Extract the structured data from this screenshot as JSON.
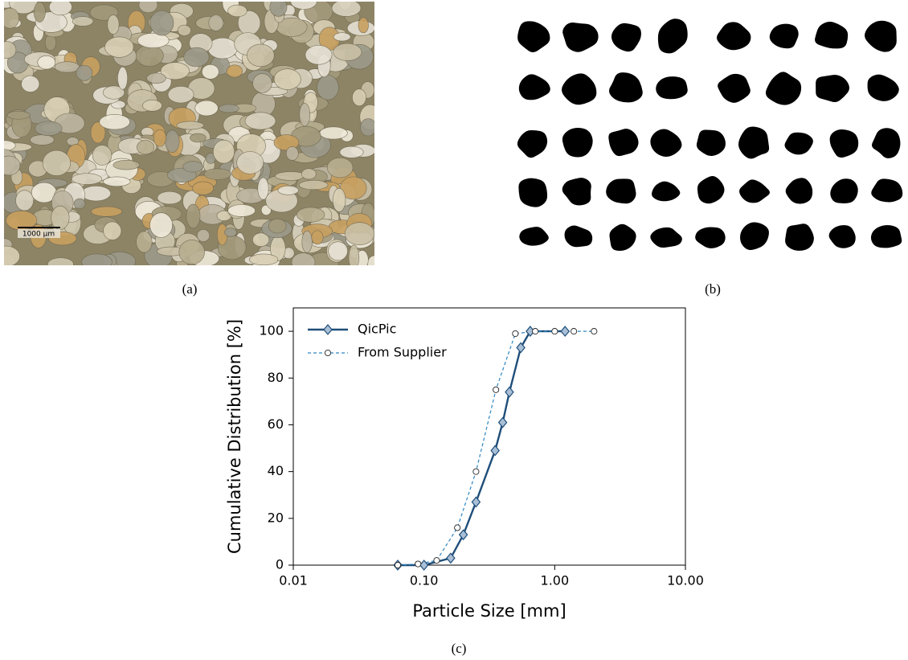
{
  "panel_labels": [
    "(a)",
    "(b)",
    "(c)"
  ],
  "scale_bar": "1000 µm",
  "chart_data": {
    "type": "line",
    "xlabel": "Particle Size [mm]",
    "ylabel": "Cumulative Distribution [%]",
    "xscale": "log",
    "xlim": [
      0.01,
      10
    ],
    "xticks": [
      {
        "value": 0.01,
        "label": "0.01"
      },
      {
        "value": 0.1,
        "label": "0.10"
      },
      {
        "value": 1,
        "label": "1.00"
      },
      {
        "value": 10,
        "label": "10.00"
      }
    ],
    "ylim": [
      0,
      110
    ],
    "yticks": [
      0,
      20,
      40,
      60,
      80,
      100
    ],
    "legend": "upper-left",
    "series": [
      {
        "name": "QicPic",
        "color": "#1f4e79",
        "marker": "diamond",
        "dash": false,
        "x": [
          0.063,
          0.1,
          0.16,
          0.2,
          0.25,
          0.35,
          0.4,
          0.45,
          0.55,
          0.65,
          1.2
        ],
        "values": [
          0,
          0,
          3,
          13,
          27,
          49,
          61,
          74,
          93,
          100,
          100
        ]
      },
      {
        "name": "From Supplier",
        "color": "#2e86c1",
        "marker": "circle",
        "dash": true,
        "x": [
          0.063,
          0.09,
          0.125,
          0.18,
          0.25,
          0.355,
          0.5,
          0.71,
          1.0,
          1.4,
          2.0
        ],
        "values": [
          0,
          0.5,
          2,
          16,
          40,
          75,
          99,
          100,
          100,
          100,
          100
        ]
      }
    ]
  }
}
